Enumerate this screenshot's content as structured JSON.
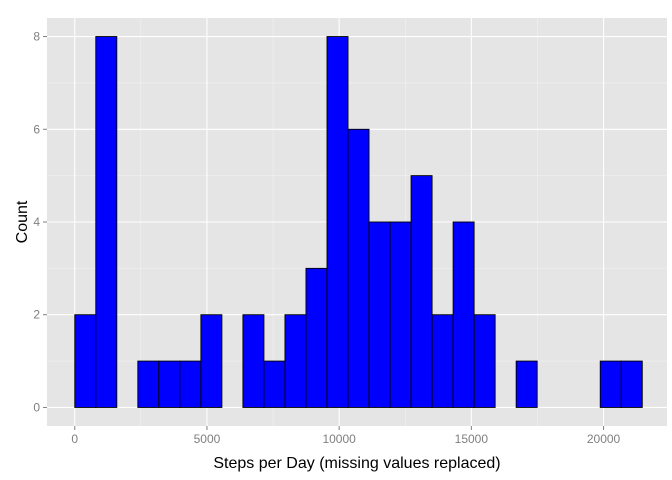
{
  "chart_data": {
    "type": "bar",
    "xlabel": "Steps per Day (missing values replaced)",
    "ylabel": "Count",
    "xlim": [
      -1050,
      22400
    ],
    "ylim": [
      -0.4,
      8.4
    ],
    "x_ticks": [
      0,
      5000,
      10000,
      15000,
      20000
    ],
    "y_ticks": [
      0,
      2,
      4,
      6,
      8
    ],
    "bin_width": 795,
    "bins": [
      {
        "start": -795,
        "count": 0
      },
      {
        "start": 0,
        "count": 2
      },
      {
        "start": 795,
        "count": 8
      },
      {
        "start": 1590,
        "count": 0
      },
      {
        "start": 2385,
        "count": 1
      },
      {
        "start": 3180,
        "count": 1
      },
      {
        "start": 3975,
        "count": 1
      },
      {
        "start": 4770,
        "count": 2
      },
      {
        "start": 5565,
        "count": 0
      },
      {
        "start": 6360,
        "count": 2
      },
      {
        "start": 7155,
        "count": 1
      },
      {
        "start": 7950,
        "count": 2
      },
      {
        "start": 8745,
        "count": 3
      },
      {
        "start": 9540,
        "count": 8
      },
      {
        "start": 10335,
        "count": 6
      },
      {
        "start": 11130,
        "count": 4
      },
      {
        "start": 11925,
        "count": 4
      },
      {
        "start": 12720,
        "count": 5
      },
      {
        "start": 13515,
        "count": 2
      },
      {
        "start": 14310,
        "count": 4
      },
      {
        "start": 15105,
        "count": 2
      },
      {
        "start": 15900,
        "count": 0
      },
      {
        "start": 16695,
        "count": 1
      },
      {
        "start": 17490,
        "count": 0
      },
      {
        "start": 18285,
        "count": 0
      },
      {
        "start": 19080,
        "count": 0
      },
      {
        "start": 19875,
        "count": 1
      },
      {
        "start": 20670,
        "count": 1
      },
      {
        "start": 21465,
        "count": 0
      }
    ],
    "bar_fill": "#0000ff",
    "bar_stroke": "#000000",
    "panel_background": "#e5e5e5",
    "grid_color": "#ffffff",
    "grid": true,
    "legend": "none"
  }
}
